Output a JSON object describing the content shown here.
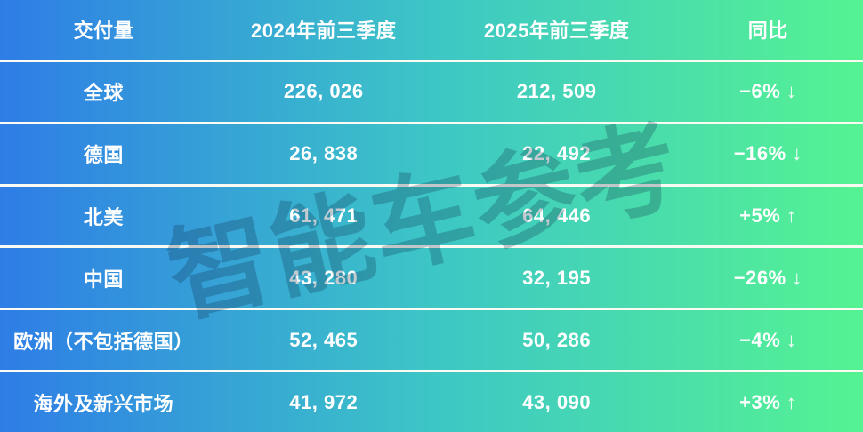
{
  "table": {
    "header": [
      "交付量",
      "2024年前三季度",
      "2025年前三季度",
      "同比"
    ],
    "rows": [
      {
        "region": "全球",
        "y2024": "226, 026",
        "y2025": "212, 509",
        "yoy": "−6% ↓"
      },
      {
        "region": "德国",
        "y2024": "26, 838",
        "y2025": "22, 492",
        "yoy": "−16% ↓"
      },
      {
        "region": "北美",
        "y2024": "61, 471",
        "y2025": "64, 446",
        "yoy": "+5% ↑"
      },
      {
        "region": "中国",
        "y2024": "43, 280",
        "y2025": "32, 195",
        "yoy": "−26% ↓"
      },
      {
        "region": "欧洲（不包括德国）",
        "y2024": "52, 465",
        "y2025": "50, 286",
        "yoy": "−4% ↓"
      },
      {
        "region": "海外及新兴市场",
        "y2024": "41, 972",
        "y2025": "43, 090",
        "yoy": "+3% ↑"
      }
    ]
  },
  "watermark": {
    "text": "智能车参考"
  },
  "colors": {
    "gradient_left": "#2e7de6",
    "gradient_mid": "#3dc6c6",
    "gradient_right": "#55f392",
    "separator": "#fbfaf3",
    "text": "#ffffff"
  },
  "chart_data": {
    "type": "table",
    "title": "交付量对比：2024年前三季度 vs 2025年前三季度",
    "columns": [
      "交付量",
      "2024年前三季度",
      "2025年前三季度",
      "同比"
    ],
    "rows": [
      {
        "region": "全球",
        "q1_q3_2024": 226026,
        "q1_q3_2025": 212509,
        "yoy_pct": -6
      },
      {
        "region": "德国",
        "q1_q3_2024": 26838,
        "q1_q3_2025": 22492,
        "yoy_pct": -16
      },
      {
        "region": "北美",
        "q1_q3_2024": 61471,
        "q1_q3_2025": 64446,
        "yoy_pct": 5
      },
      {
        "region": "中国",
        "q1_q3_2024": 43280,
        "q1_q3_2025": 32195,
        "yoy_pct": -26
      },
      {
        "region": "欧洲（不包括德国）",
        "q1_q3_2024": 52465,
        "q1_q3_2025": 50286,
        "yoy_pct": -4
      },
      {
        "region": "海外及新兴市场",
        "q1_q3_2024": 41972,
        "q1_q3_2025": 43090,
        "yoy_pct": 3
      }
    ]
  }
}
